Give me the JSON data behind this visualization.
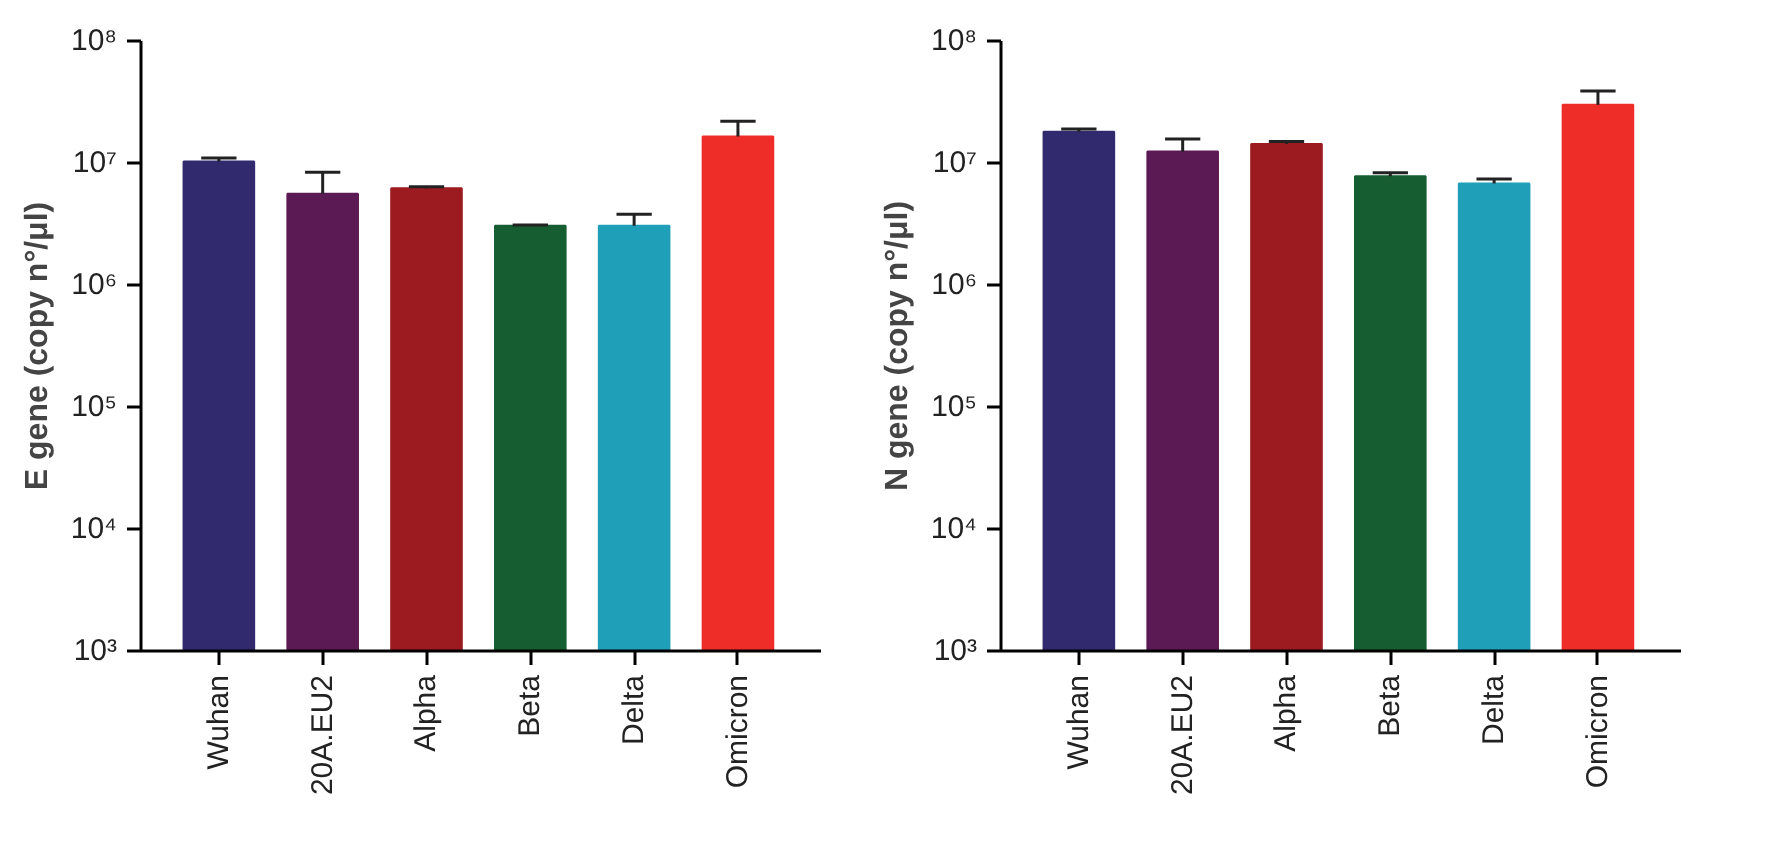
{
  "chart_data": [
    {
      "type": "bar",
      "ylabel": "E gene (copy n°/μl)",
      "categories": [
        "Wuhan",
        "20A.EU2",
        "Alpha",
        "Beta",
        "Delta",
        "Omicron"
      ],
      "values": [
        10300000,
        5600000,
        6200000,
        3060000,
        3060000,
        16500000
      ],
      "colors": [
        "#312a6e",
        "#5b1a53",
        "#9c1b20",
        "#165e32",
        "#209fb8",
        "#ee2d29"
      ],
      "errors": [
        [
          10300000,
          11000000
        ],
        [
          5600000,
          8400000
        ],
        [
          6200000,
          6400000
        ],
        [
          3060000,
          3100000
        ],
        [
          3060000,
          3800000
        ],
        [
          16500000,
          22000000
        ]
      ],
      "log": true,
      "ylim": [
        1000,
        100000000
      ],
      "yticks": [
        {
          "value": 1000,
          "label": "10³"
        },
        {
          "value": 10000,
          "label": "10⁴"
        },
        {
          "value": 100000,
          "label": "10⁵"
        },
        {
          "value": 1000000,
          "label": "10⁶"
        },
        {
          "value": 10000000,
          "label": "10⁷"
        },
        {
          "value": 100000000,
          "label": "10⁸"
        }
      ],
      "grid": false,
      "legend": false
    },
    {
      "type": "bar",
      "ylabel": "N gene (copy n°/μl)",
      "categories": [
        "Wuhan",
        "20A.EU2",
        "Alpha",
        "Beta",
        "Delta",
        "Omicron"
      ],
      "values": [
        18000000,
        12400000,
        14300000,
        7800000,
        6800000,
        30000000
      ],
      "colors": [
        "#312a6e",
        "#5b1a53",
        "#9c1b20",
        "#165e32",
        "#209fb8",
        "#ee2d29"
      ],
      "errors": [
        [
          18000000,
          19000000
        ],
        [
          12400000,
          15700000
        ],
        [
          14300000,
          15000000
        ],
        [
          7800000,
          8300000
        ],
        [
          6800000,
          7400000
        ],
        [
          30000000,
          39000000
        ]
      ],
      "log": true,
      "ylim": [
        1000,
        100000000
      ],
      "yticks": [
        {
          "value": 1000,
          "label": "10³"
        },
        {
          "value": 10000,
          "label": "10⁴"
        },
        {
          "value": 100000,
          "label": "10⁵"
        },
        {
          "value": 1000000,
          "label": "10⁶"
        },
        {
          "value": 10000000,
          "label": "10⁷"
        },
        {
          "value": 100000000,
          "label": "10⁸"
        }
      ],
      "grid": false,
      "legend": false
    }
  ]
}
